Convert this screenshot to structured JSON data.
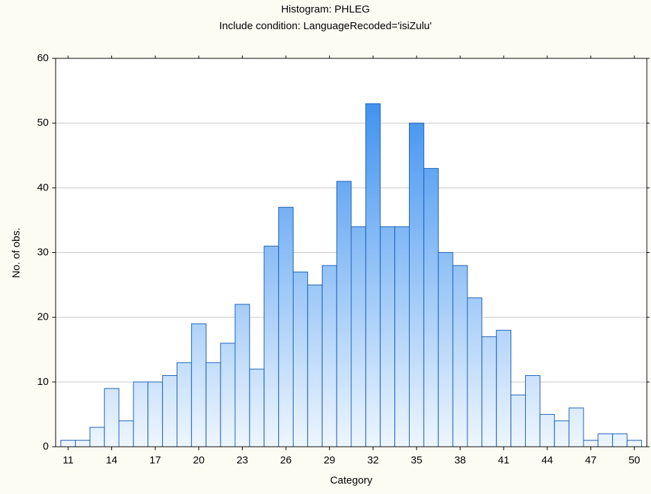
{
  "chart_data": {
    "type": "histogram",
    "title": "Histogram: PHLEG",
    "subtitle": "Include condition: LanguageRecoded='isiZulu'",
    "x_label": "Category",
    "y_label": "No. of obs.",
    "bins": [
      10.5,
      11.5,
      12.5,
      13.5,
      14.5,
      15.5,
      16.5,
      17.5,
      18.5,
      19.5,
      20.5,
      21.5,
      22.5,
      23.5,
      24.5,
      25.5,
      26.5,
      27.5,
      28.5,
      29.5,
      30.5,
      31.5,
      32.5,
      33.5,
      34.5,
      35.5,
      36.5,
      37.5,
      38.5,
      39.5,
      40.5,
      41.5,
      42.5,
      43.5,
      44.5,
      45.5,
      46.5,
      47.5,
      48.5,
      49.5,
      50.5
    ],
    "values": [
      1,
      1,
      3,
      9,
      4,
      10,
      10,
      11,
      13,
      19,
      13,
      16,
      22,
      12,
      31,
      37,
      27,
      25,
      28,
      41,
      34,
      53,
      34,
      34,
      50,
      43,
      30,
      28,
      23,
      17,
      18,
      8,
      11,
      5,
      4,
      6,
      1,
      2,
      2,
      1
    ],
    "color": "#2a86ee",
    "xlim": [
      10.14,
      50.86
    ],
    "xticks": [
      11,
      14,
      17,
      20,
      23,
      26,
      29,
      32,
      35,
      38,
      41,
      44,
      47,
      50
    ],
    "ylim": [
      0,
      60
    ],
    "yticks": [
      0,
      10,
      20,
      30,
      40,
      50,
      60
    ],
    "grid": true
  }
}
